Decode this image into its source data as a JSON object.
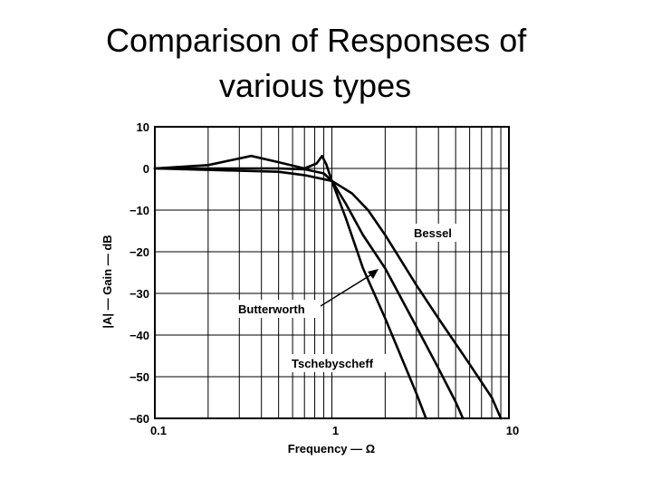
{
  "title_lines": [
    "Comparison of Responses of",
    "various types"
  ],
  "chart_data": {
    "type": "line",
    "xlabel": "Frequency — Ω",
    "ylabel": "|A| — Gain — dB",
    "x_scale": "log",
    "xlim": [
      0.1,
      10
    ],
    "ylim": [
      -60,
      10
    ],
    "grid": true,
    "x_ticks": [
      "0.1",
      "1",
      "10"
    ],
    "y_ticks": [
      "10",
      "0",
      "−10",
      "−20",
      "−30",
      "−40",
      "−50",
      "−60"
    ],
    "series": [
      {
        "name": "Bessel",
        "x": [
          0.1,
          0.5,
          0.7,
          1.0,
          1.3,
          1.6,
          2.0,
          3.0,
          4.0,
          6.0,
          8.0,
          9.0
        ],
        "y": [
          0,
          -0.8,
          -1.6,
          -3,
          -6,
          -10,
          -16,
          -28,
          -36,
          -47,
          -55,
          -60
        ]
      },
      {
        "name": "Butterworth",
        "x": [
          0.1,
          0.5,
          0.7,
          0.9,
          1.0,
          1.2,
          1.5,
          2.0,
          3.0,
          4.0,
          5.0,
          5.5
        ],
        "y": [
          0,
          0,
          -0.2,
          -1.2,
          -3,
          -8.5,
          -16,
          -24,
          -38,
          -48,
          -56,
          -60
        ]
      },
      {
        "name": "Tschebyscheff",
        "x": [
          0.1,
          0.2,
          0.35,
          0.5,
          0.7,
          0.82,
          0.88,
          0.93,
          1.0,
          1.2,
          1.5,
          2.0,
          3.0,
          3.4
        ],
        "y": [
          0,
          0.8,
          3,
          1.5,
          0,
          1.2,
          3,
          1,
          -3,
          -12,
          -24,
          -36,
          -54,
          -60
        ]
      }
    ],
    "annotations": [
      "Bessel",
      "Butterworth",
      "Tschebyscheff"
    ]
  }
}
